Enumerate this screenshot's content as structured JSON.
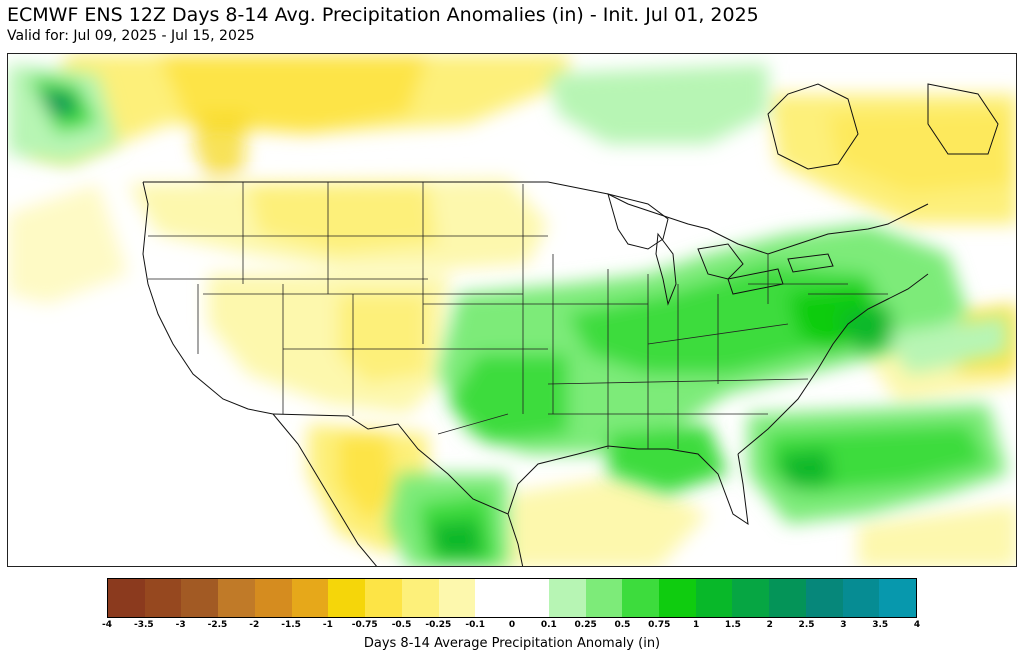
{
  "title": "ECMWF ENS 12Z Days 8-14 Avg. Precipitation Anomalies (in) - Init. Jul 01, 2025",
  "subtitle": "Valid for: Jul 09, 2025 - Jul 15, 2025",
  "colorbar": {
    "label": "Days 8-14 Average Precipitation Anomaly (in)",
    "ticks": [
      "-4",
      "-3.5",
      "-3",
      "-2.5",
      "-2",
      "-1.5",
      "-1",
      "-0.75",
      "-0.5",
      "-0.25",
      "-0.1",
      "0",
      "0.1",
      "0.25",
      "0.5",
      "0.75",
      "1",
      "1.5",
      "2",
      "2.5",
      "3",
      "3.5",
      "4"
    ],
    "colors": [
      "#8b3a1e",
      "#96481f",
      "#a25a24",
      "#c07a28",
      "#d58c1f",
      "#e6a81a",
      "#f5d60a",
      "#fde446",
      "#fdf07a",
      "#fdf8ad",
      "#ffffff",
      "#ffffff",
      "#b7f5b4",
      "#7deb79",
      "#3ddc3d",
      "#0fcc0f",
      "#08b829",
      "#06a643",
      "#049458",
      "#06877a",
      "#068c93",
      "#0798ad"
    ]
  },
  "map": {
    "region": "CONUS",
    "features": [
      "precipitation-anomaly-field",
      "state-borders",
      "country-borders",
      "coastlines",
      "great-lakes"
    ]
  }
}
